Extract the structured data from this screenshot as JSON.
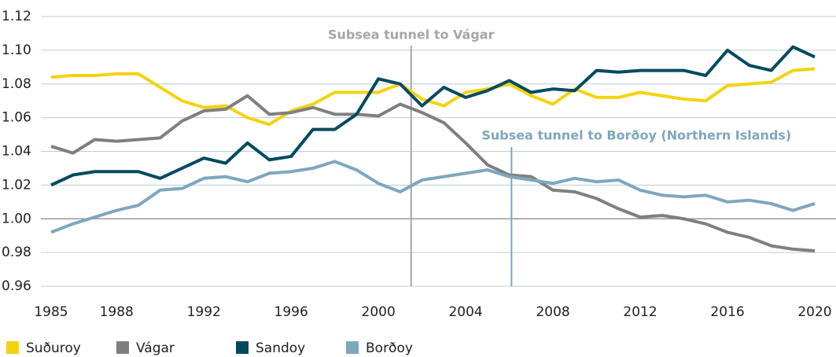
{
  "chart_data": {
    "type": "line",
    "x": [
      1985,
      1986,
      1987,
      1988,
      1989,
      1990,
      1991,
      1992,
      1993,
      1994,
      1995,
      1996,
      1997,
      1998,
      1999,
      2000,
      2001,
      2002,
      2003,
      2004,
      2005,
      2006,
      2007,
      2008,
      2009,
      2010,
      2011,
      2012,
      2013,
      2014,
      2015,
      2016,
      2017,
      2018,
      2019,
      2020
    ],
    "xlim": [
      1985,
      2020
    ],
    "xticks": [
      1985,
      1988,
      1992,
      1996,
      2000,
      2004,
      2008,
      2012,
      2016,
      2020
    ],
    "ylim": [
      0.96,
      1.12
    ],
    "yticks": [
      0.96,
      0.98,
      {
        "value": 1,
        "label": "1.00"
      },
      1.02,
      1.04,
      1.06,
      1.08,
      {
        "value": 1.1,
        "label": "1.10"
      },
      1.12
    ],
    "grid": true,
    "series": [
      {
        "name": "Suðuroy",
        "color": "#f5d20f",
        "values": [
          1.084,
          1.085,
          1.085,
          1.086,
          1.086,
          1.078,
          1.07,
          1.066,
          1.067,
          1.06,
          1.056,
          1.064,
          1.068,
          1.075,
          1.075,
          1.075,
          1.08,
          1.071,
          1.067,
          1.075,
          1.077,
          1.08,
          1.073,
          1.068,
          1.077,
          1.072,
          1.072,
          1.075,
          1.073,
          1.071,
          1.07,
          1.079,
          1.08,
          1.081,
          1.088,
          1.089
        ]
      },
      {
        "name": "Vágar",
        "color": "#807f80",
        "values": [
          1.043,
          1.039,
          1.047,
          1.046,
          1.047,
          1.048,
          1.058,
          1.064,
          1.065,
          1.073,
          1.062,
          1.063,
          1.066,
          1.062,
          1.062,
          1.061,
          1.068,
          1.063,
          1.057,
          1.045,
          1.032,
          1.026,
          1.025,
          1.017,
          1.016,
          1.012,
          1.006,
          1.001,
          1.002,
          1.0,
          0.997,
          0.992,
          0.989,
          0.984,
          0.982,
          0.981
        ]
      },
      {
        "name": "Sandoy",
        "color": "#004a60",
        "values": [
          1.02,
          1.026,
          1.028,
          1.028,
          1.028,
          1.024,
          1.03,
          1.036,
          1.033,
          1.045,
          1.035,
          1.037,
          1.053,
          1.053,
          1.062,
          1.083,
          1.08,
          1.067,
          1.078,
          1.072,
          1.076,
          1.082,
          1.075,
          1.077,
          1.076,
          1.088,
          1.087,
          1.088,
          1.088,
          1.088,
          1.085,
          1.1,
          1.091,
          1.088,
          1.102,
          1.096
        ]
      },
      {
        "name": "Borðoy",
        "color": "#7ea7bd",
        "values": [
          0.992,
          0.997,
          1.001,
          1.005,
          1.008,
          1.017,
          1.018,
          1.024,
          1.025,
          1.022,
          1.027,
          1.028,
          1.03,
          1.034,
          1.029,
          1.021,
          1.016,
          1.023,
          1.025,
          1.027,
          1.029,
          1.025,
          1.023,
          1.021,
          1.024,
          1.022,
          1.023,
          1.017,
          1.014,
          1.013,
          1.014,
          1.01,
          1.011,
          1.009,
          1.005,
          1.009
        ]
      }
    ],
    "annotations": [
      {
        "text": "Subsea tunnel to Vágar",
        "x": 2001.5,
        "color": "#a6a6a6"
      },
      {
        "text": "Subsea tunnel to Borðoy (Northern Islands)",
        "x": 2006.1,
        "color": "#7ea7bd"
      }
    ]
  }
}
